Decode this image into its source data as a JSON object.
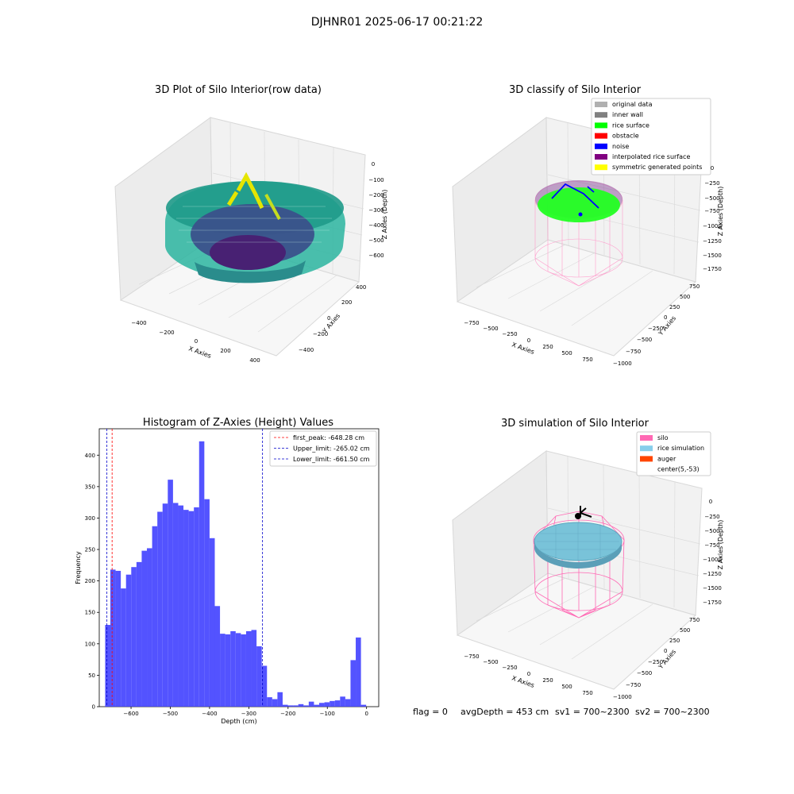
{
  "suptitle": "DJHNR01 2025-06-17 00:21:22",
  "panels": {
    "raw": {
      "title": "3D Plot of Silo Interior(row data)",
      "xlabel": "X Axies",
      "ylabel": "Y Axies",
      "zlabel": "Z Axies (Depth)",
      "xticks": [
        "−400",
        "−200",
        "0",
        "200",
        "400"
      ],
      "yticks": [
        "−400",
        "−200",
        "0",
        "200",
        "400"
      ],
      "zticks": [
        "0",
        "−100",
        "−200",
        "−300",
        "−400",
        "−500",
        "−600"
      ]
    },
    "classify": {
      "title": "3D classify of Silo Interior",
      "xlabel": "X Axies",
      "ylabel": "Y Axies",
      "zlabel": "Z Axies (Depth)",
      "xticks": [
        "−750",
        "−500",
        "−250",
        "0",
        "250",
        "500",
        "750"
      ],
      "yticks": [
        "−1000",
        "−750",
        "−500",
        "−250",
        "0",
        "250",
        "500",
        "750"
      ],
      "zticks": [
        "0",
        "−250",
        "−500",
        "−750",
        "−1000",
        "−1250",
        "−1500",
        "−1750"
      ],
      "legend": [
        {
          "label": "original data",
          "color": "#b0b0b0"
        },
        {
          "label": "inner wall",
          "color": "#808080"
        },
        {
          "label": "rice surface",
          "color": "#00ff00"
        },
        {
          "label": "obstacle",
          "color": "#ff0000"
        },
        {
          "label": "noise",
          "color": "#0000ff"
        },
        {
          "label": "interpolated rice surface",
          "color": "#800080"
        },
        {
          "label": "symmetric generated points",
          "color": "#ffff00"
        }
      ]
    },
    "simulation": {
      "title": "3D simulation of Silo Interior",
      "xlabel": "X Axies",
      "ylabel": "Y Axies",
      "zlabel": "Z Axies (Depth)",
      "xticks": [
        "−750",
        "−500",
        "−250",
        "0",
        "250",
        "500",
        "750"
      ],
      "yticks": [
        "−1000",
        "−750",
        "−500",
        "−250",
        "0",
        "250",
        "500",
        "750"
      ],
      "zticks": [
        "0",
        "−250",
        "−500",
        "−750",
        "−1000",
        "−1250",
        "−1500",
        "−1750"
      ],
      "legend": [
        {
          "label": "silo",
          "color": "#ff69b4"
        },
        {
          "label": "rice simulation",
          "color": "#87ceeb"
        },
        {
          "label": "auger",
          "color": "#ff4500"
        },
        {
          "label": "center(5,-53)",
          "color": "none"
        }
      ],
      "footer": {
        "flag": "flag = 0",
        "avg": "avgDepth = 453 cm",
        "sv1": "sv1 = 700~2300",
        "sv2": "sv2 = 700~2300"
      }
    }
  },
  "chart_data": {
    "type": "bar",
    "title": "Histogram of Z-Axies (Height) Values",
    "xlabel": "Depth (cm)",
    "ylabel": "Frequency",
    "xlim": [
      -681,
      31
    ],
    "ylim": [
      0,
      442
    ],
    "xticks": [
      -600,
      -500,
      -400,
      -300,
      -200,
      -100,
      0
    ],
    "yticks": [
      0,
      50,
      100,
      150,
      200,
      250,
      300,
      350,
      400
    ],
    "bin_start": -666,
    "bin_width": 13.3,
    "values": [
      130,
      218,
      216,
      188,
      210,
      222,
      230,
      248,
      252,
      287,
      310,
      323,
      361,
      324,
      320,
      313,
      311,
      317,
      422,
      330,
      268,
      160,
      116,
      115,
      120,
      117,
      115,
      120,
      122,
      96,
      65,
      15,
      12,
      23,
      3,
      2,
      2,
      4,
      2,
      8,
      3,
      6,
      7,
      9,
      10,
      16,
      12,
      74,
      110,
      3
    ],
    "color": "#4444ff",
    "vlines": [
      {
        "label": "first_peak: -648.28 cm",
        "x": -648.28,
        "color": "#ff0000"
      },
      {
        "label": "Upper_limit: -265.02 cm",
        "x": -265.02,
        "color": "#0000cc"
      },
      {
        "label": "Lower_limit: -661.50 cm",
        "x": -661.5,
        "color": "#0000cc"
      }
    ]
  }
}
